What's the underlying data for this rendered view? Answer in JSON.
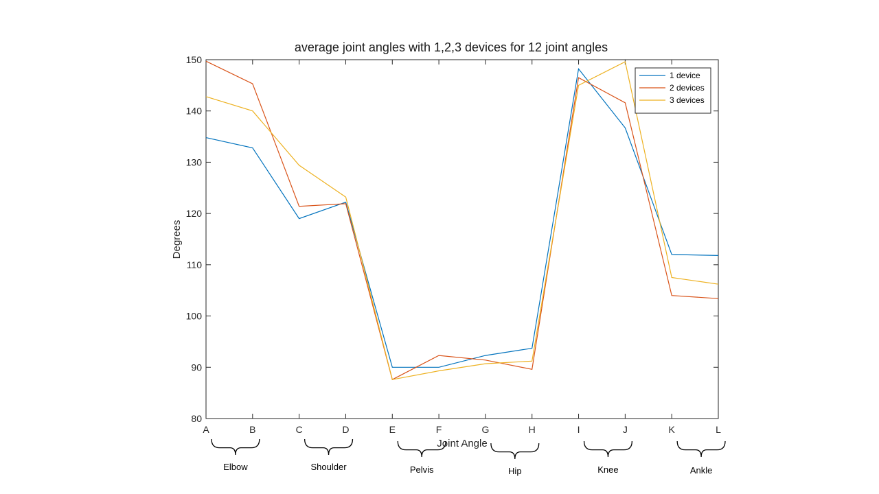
{
  "chart_data": {
    "type": "line",
    "title": "average joint angles with 1,2,3 devices for 12 joint angles",
    "xlabel": "Joint Angle",
    "ylabel": "Degrees",
    "categories": [
      "A",
      "B",
      "C",
      "D",
      "E",
      "F",
      "G",
      "H",
      "I",
      "J",
      "K",
      "L"
    ],
    "ylim": [
      80,
      150
    ],
    "yticks": [
      80,
      90,
      100,
      110,
      120,
      130,
      140,
      150
    ],
    "grid": false,
    "legend_position": "top-right",
    "series": [
      {
        "name": "1 device",
        "color": "#0072BD",
        "values": [
          134.8,
          132.8,
          119.0,
          122.2,
          90.0,
          90.0,
          92.3,
          93.7,
          148.2,
          136.7,
          112.0,
          111.8
        ]
      },
      {
        "name": "2 devices",
        "color": "#D95319",
        "values": [
          149.7,
          145.3,
          121.4,
          121.9,
          87.6,
          92.3,
          91.4,
          89.6,
          146.5,
          141.6,
          104.0,
          103.4
        ]
      },
      {
        "name": "3 devices",
        "color": "#EDB120",
        "values": [
          142.8,
          140.0,
          129.4,
          123.2,
          87.6,
          89.3,
          90.7,
          91.2,
          145.0,
          149.6,
          107.5,
          106.2
        ]
      }
    ],
    "groups": [
      {
        "label": "Elbow",
        "from": 0,
        "to": 1
      },
      {
        "label": "Shoulder",
        "from": 2,
        "to": 3
      },
      {
        "label": "Pelvis",
        "from": 4,
        "to": 5
      },
      {
        "label": "Hip",
        "from": 6,
        "to": 7
      },
      {
        "label": "Knee",
        "from": 8,
        "to": 9
      },
      {
        "label": "Ankle",
        "from": 10,
        "to": 11
      }
    ]
  }
}
